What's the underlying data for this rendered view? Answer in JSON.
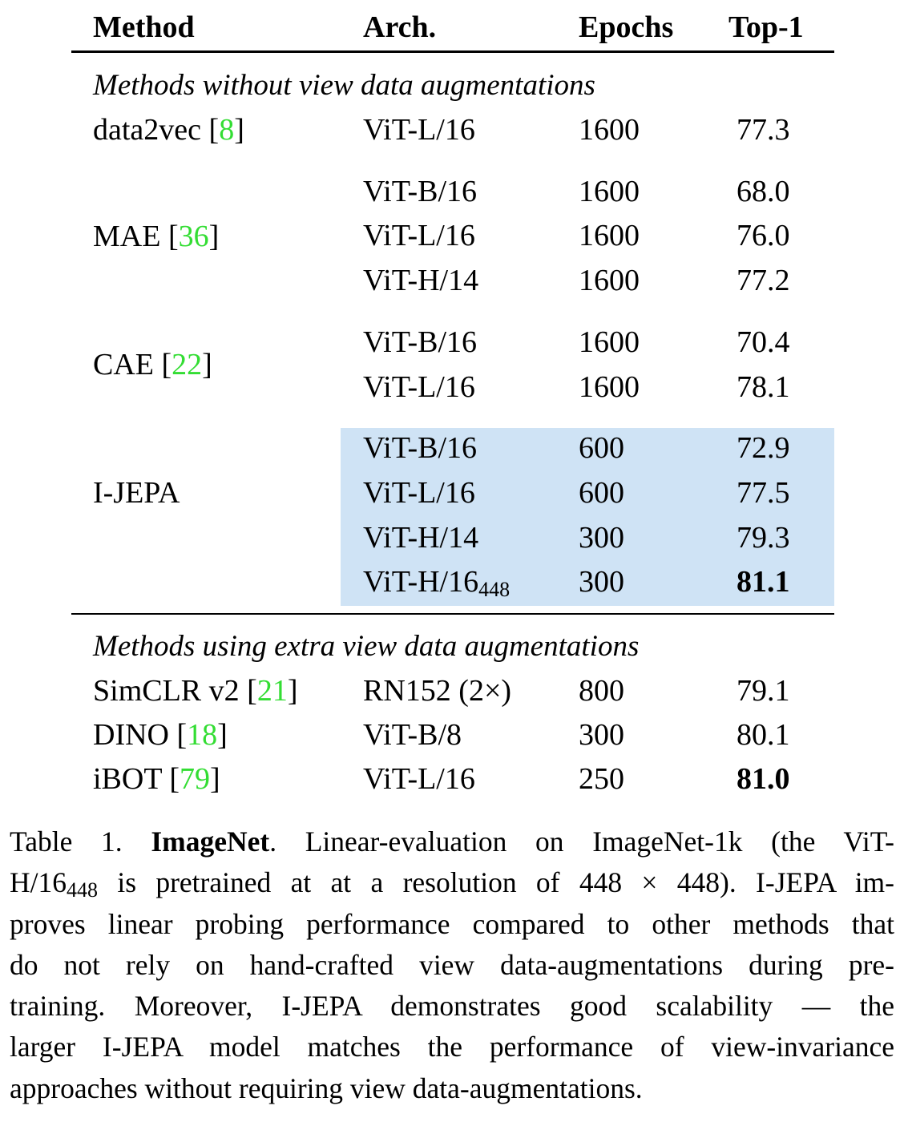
{
  "table": {
    "headers": {
      "method": "Method",
      "arch": "Arch.",
      "epochs": "Epochs",
      "top1": "Top-1"
    },
    "section1_label": "Methods without view data augmentations",
    "section2_label": "Methods using extra view data augmentations",
    "groups": [
      {
        "method": "data2vec",
        "ref": "8",
        "rows": [
          {
            "arch": "ViT-L/16",
            "epochs": "1600",
            "top1": "77.3"
          }
        ]
      },
      {
        "method": "MAE",
        "ref": "36",
        "rows": [
          {
            "arch": "ViT-B/16",
            "epochs": "1600",
            "top1": "68.0"
          },
          {
            "arch": "ViT-L/16",
            "epochs": "1600",
            "top1": "76.0"
          },
          {
            "arch": "ViT-H/14",
            "epochs": "1600",
            "top1": "77.2"
          }
        ]
      },
      {
        "method": "CAE",
        "ref": "22",
        "rows": [
          {
            "arch": "ViT-B/16",
            "epochs": "1600",
            "top1": "70.4"
          },
          {
            "arch": "ViT-L/16",
            "epochs": "1600",
            "top1": "78.1"
          }
        ]
      },
      {
        "method": "I-JEPA",
        "ref": "",
        "rows": [
          {
            "arch": "ViT-B/16",
            "epochs": "600",
            "top1": "72.9"
          },
          {
            "arch": "ViT-L/16",
            "epochs": "600",
            "top1": "77.5"
          },
          {
            "arch": "ViT-H/14",
            "epochs": "300",
            "top1": "79.3"
          },
          {
            "arch": "ViT-H/16",
            "arch_sub": "448",
            "epochs": "300",
            "top1": "81.1",
            "top1_bold": true
          }
        ]
      },
      {
        "method": "SimCLR v2",
        "ref": "21",
        "rows": [
          {
            "arch": "RN152 (2×)",
            "epochs": "800",
            "top1": "79.1"
          }
        ]
      },
      {
        "method": "DINO",
        "ref": "18",
        "rows": [
          {
            "arch": "ViT-B/8",
            "epochs": "300",
            "top1": "80.1"
          }
        ]
      },
      {
        "method": "iBOT",
        "ref": "79",
        "rows": [
          {
            "arch": "ViT-L/16",
            "epochs": "250",
            "top1": "81.0",
            "top1_bold": true
          }
        ]
      }
    ],
    "highlight_color": "#cfe3f5",
    "ref_color": "#33dd33"
  },
  "caption": {
    "label": "Table 1.",
    "title": "ImageNet",
    "line1_after_title": ". Linear-evaluation on ImageNet-1k (the ViT-",
    "line2_pre": "H/16",
    "line2_sub": "448",
    "line2_post": " is pretrained at at a resolution of 448 × 448). I-JEPA im-",
    "line3": "proves linear probing performance compared to other methods that",
    "line4": "do not rely on hand-crafted view data-augmentations during pre-",
    "line5": "training. Moreover, I-JEPA demonstrates good scalability — the",
    "line6": "larger I-JEPA model matches the performance of view-invariance",
    "line7": "approaches without requiring view data-augmentations."
  }
}
